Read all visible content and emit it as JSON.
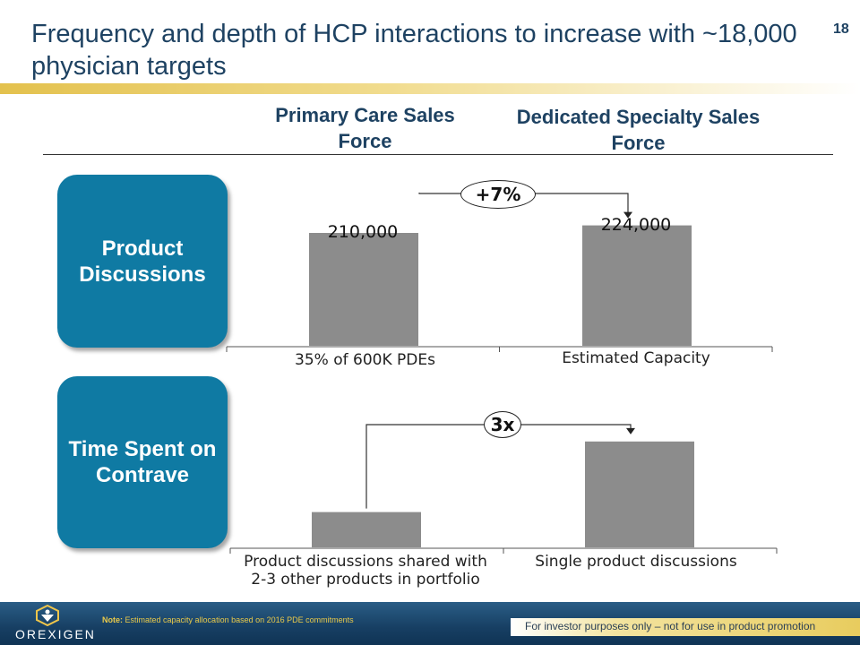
{
  "header": {
    "title": "Frequency and depth of HCP interactions to increase with ~18,000 physician targets",
    "page_number": "18"
  },
  "columns": {
    "left": "Primary Care Sales Force",
    "right": "Dedicated Specialty Sales Force"
  },
  "rows": {
    "top_label": "Product Discussions",
    "bottom_label": "Time Spent on Contrave"
  },
  "colors": {
    "bar": "#8c8c8c",
    "pill": "#0f7aa3",
    "title": "#1e4262",
    "gold": "#e3c14d"
  },
  "chart_data": [
    {
      "type": "bar",
      "categories": [
        "35% of 600K PDEs",
        "Estimated Capacity"
      ],
      "values": [
        210000,
        224000
      ],
      "value_labels": [
        "210,000",
        "224,000"
      ],
      "change_label": "+7%",
      "ylim": [
        0,
        250000
      ]
    },
    {
      "type": "bar",
      "categories": [
        "Product discussions shared with 2-3 other products in portfolio",
        "Single product discussions"
      ],
      "values": [
        1,
        3
      ],
      "change_label": "3x",
      "ylim": [
        0,
        3.3
      ]
    }
  ],
  "footer": {
    "note_label": "Note:",
    "note_text": "Estimated capacity allocation based on 2016 PDE commitments",
    "disclaimer": "For investor purposes only – not for use in product promotion",
    "logo_text": "OREXIGEN"
  }
}
